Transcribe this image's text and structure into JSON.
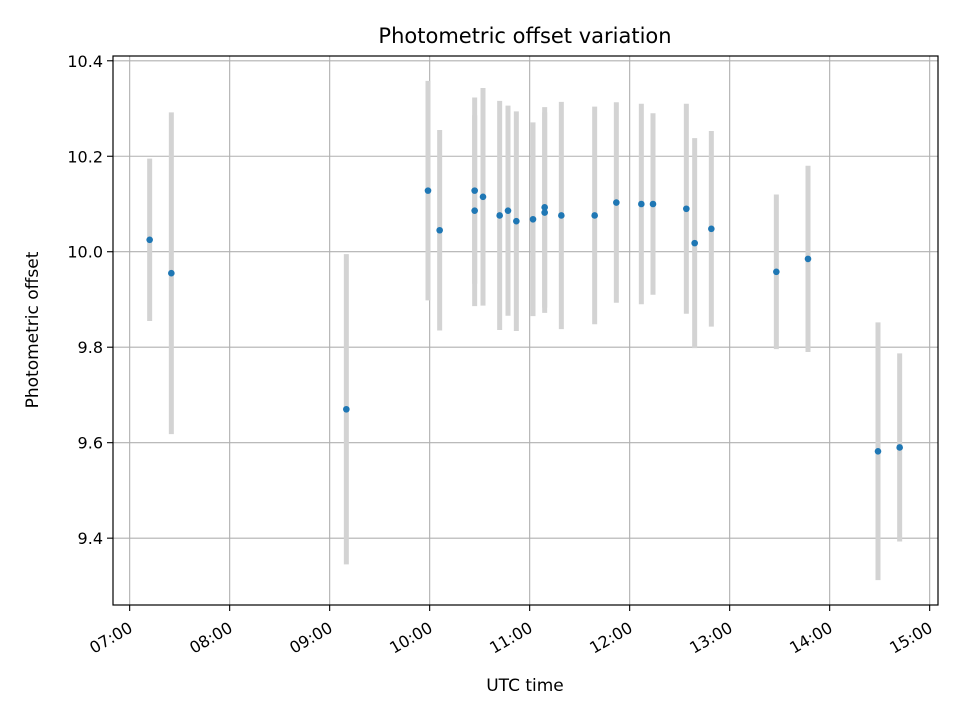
{
  "chart_data": {
    "type": "scatter",
    "title": "Photometric offset variation",
    "xlabel": "UTC time",
    "ylabel": "Photometric offset",
    "x_ticks": [
      "07:00",
      "08:00",
      "09:00",
      "10:00",
      "11:00",
      "12:00",
      "13:00",
      "14:00",
      "15:00"
    ],
    "y_ticks": [
      "9.4",
      "9.6",
      "9.8",
      "10.0",
      "10.2",
      "10.4"
    ],
    "xlim": [
      "06:50",
      "15:05"
    ],
    "ylim": [
      9.26,
      10.41
    ],
    "grid": true,
    "marker_color": "#1f77b4",
    "errorbar_color": "#d3d3d3",
    "points": [
      {
        "t": "07:12",
        "y": 10.025,
        "err": 0.17
      },
      {
        "t": "07:25",
        "y": 9.955,
        "err": 0.337
      },
      {
        "t": "09:10",
        "y": 9.67,
        "err": 0.325
      },
      {
        "t": "09:59",
        "y": 10.128,
        "err": 0.23
      },
      {
        "t": "10:06",
        "y": 10.045,
        "err": 0.21
      },
      {
        "t": "10:27",
        "y": 10.128,
        "err": 0.195
      },
      {
        "t": "10:27",
        "y": 10.086,
        "err": 0.2
      },
      {
        "t": "10:32",
        "y": 10.115,
        "err": 0.228
      },
      {
        "t": "10:42",
        "y": 10.076,
        "err": 0.24
      },
      {
        "t": "10:47",
        "y": 10.086,
        "err": 0.22
      },
      {
        "t": "10:52",
        "y": 10.064,
        "err": 0.23
      },
      {
        "t": "11:02",
        "y": 10.068,
        "err": 0.203
      },
      {
        "t": "11:09",
        "y": 10.093,
        "err": 0.21
      },
      {
        "t": "11:09",
        "y": 10.082,
        "err": 0.21
      },
      {
        "t": "11:19",
        "y": 10.076,
        "err": 0.238
      },
      {
        "t": "11:39",
        "y": 10.076,
        "err": 0.228
      },
      {
        "t": "11:52",
        "y": 10.103,
        "err": 0.21
      },
      {
        "t": "12:07",
        "y": 10.1,
        "err": 0.21
      },
      {
        "t": "12:14",
        "y": 10.1,
        "err": 0.19
      },
      {
        "t": "12:34",
        "y": 10.09,
        "err": 0.22
      },
      {
        "t": "12:39",
        "y": 10.018,
        "err": 0.22
      },
      {
        "t": "12:49",
        "y": 10.048,
        "err": 0.205
      },
      {
        "t": "13:28",
        "y": 9.958,
        "err": 0.162
      },
      {
        "t": "13:47",
        "y": 9.985,
        "err": 0.195
      },
      {
        "t": "14:29",
        "y": 9.582,
        "err": 0.27
      },
      {
        "t": "14:42",
        "y": 9.59,
        "err": 0.197
      }
    ]
  }
}
